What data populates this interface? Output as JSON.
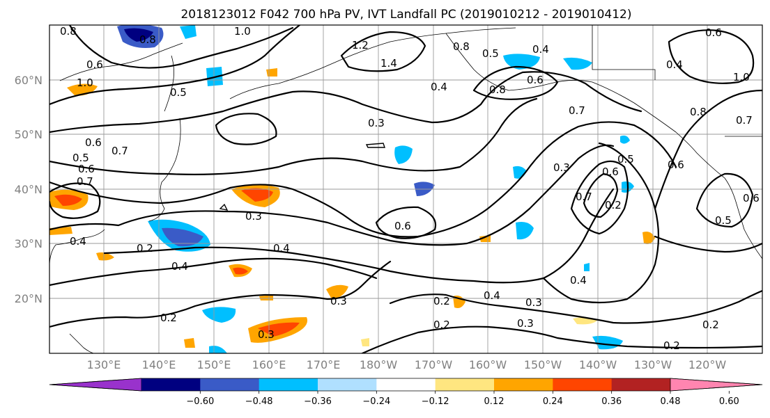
{
  "title": "2018123012 F042 700 hPa PV, IVT Landfall PC (2019010212 - 2019010412)",
  "lat_labels": [
    "60°N",
    "50°N",
    "40°N",
    "30°N",
    "20°N"
  ],
  "lon_labels": [
    "130°E",
    "140°E",
    "150°E",
    "160°E",
    "170°E",
    "180°W",
    "170°W",
    "160°W",
    "150°W",
    "140°W",
    "130°W",
    "120°W"
  ],
  "colorbar": {
    "tick_labels": [
      "−0.60",
      "−0.48",
      "−0.36",
      "−0.24",
      "−0.12",
      "0.12",
      "0.24",
      "0.36",
      "0.48",
      "0.60"
    ],
    "colors": [
      "#9932CC",
      "#000080",
      "#3A5BC7",
      "#00BFFF",
      "#B0E0FF",
      "#FFFFFF",
      "#FFE680",
      "#FFA500",
      "#FF4500",
      "#B22222",
      "#FF85B0"
    ]
  },
  "contour_labels": [
    "0.8",
    "1.0",
    "0.8",
    "1.2",
    "1.4",
    "0.8",
    "0.5",
    "0.4",
    "0.6",
    "0.7",
    "0.3",
    "0.5",
    "0.6",
    "1.0",
    "0.8",
    "1.0",
    "0.7",
    "0.3",
    "0.6",
    "0.7",
    "0.6",
    "0.5",
    "0.2",
    "0.3",
    "0.5",
    "0.6",
    "0.4",
    "0.2",
    "0.4",
    "0.4",
    "0.3",
    "0.2",
    "0.2",
    "0.3",
    "0.4",
    "0.3",
    "0.2",
    "0.2",
    "0.2",
    "0.3",
    "0.4",
    "0.6",
    "0.4",
    "0.5",
    "0.6",
    "0.7",
    "0.6",
    "0.8",
    "0.4",
    "0.6",
    "0.7"
  ]
}
